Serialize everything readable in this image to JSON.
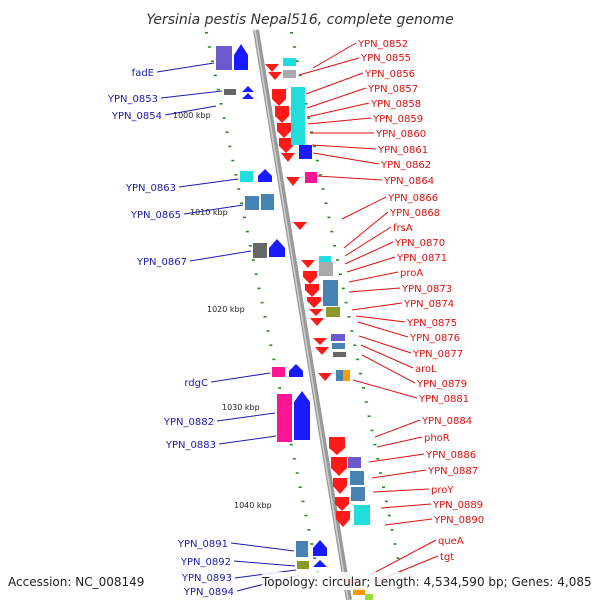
{
  "title": "Yersinia pestis Nepal516, complete genome",
  "footer": {
    "accession": "Accession: NC_008149",
    "topology": "Topology: circular; Length: 4,534,590 bp; Genes: 4,085"
  },
  "scale_labels": [
    "1000 kbp",
    "1010 kbp",
    "1020 kbp",
    "1030 kbp",
    "1040 kbp"
  ],
  "left_labels": [
    "fadE",
    "YPN_0853",
    "YPN_0854",
    "YPN_0863",
    "YPN_0865",
    "YPN_0867",
    "rdgC",
    "YPN_0882",
    "YPN_0883",
    "YPN_0891",
    "YPN_0892",
    "YPN_0893",
    "YPN_0894"
  ],
  "right_labels": [
    "YPN_0852",
    "YPN_0855",
    "YPN_0856",
    "YPN_0857",
    "YPN_0858",
    "YPN_0859",
    "YPN_0860",
    "YPN_0861",
    "YPN_0862",
    "YPN_0864",
    "YPN_0866",
    "YPN_0868",
    "frsA",
    "YPN_0870",
    "YPN_0871",
    "proA",
    "YPN_0873",
    "YPN_0874",
    "YPN_0875",
    "YPN_0876",
    "YPN_0877",
    "aroL",
    "YPN_0879",
    "YPN_0881",
    "YPN_0884",
    "phoR",
    "YPN_0886",
    "YPN_0887",
    "proY",
    "YPN_0889",
    "YPN_0890",
    "queA",
    "tgt"
  ],
  "colors": {
    "backbone": "#888888",
    "forward_gene": "#1a1aff",
    "reverse_gene": "#ff1a1a",
    "left_label": "#1b1baf",
    "right_label": "#e01010",
    "tick": "#2a8a2a",
    "purple": "#6a5acd",
    "cyan": "#22dddd",
    "steel": "#4682b4",
    "magenta": "#ff1493",
    "grey": "#777777",
    "olive": "#8a9a2a",
    "orange": "#ff9900"
  }
}
